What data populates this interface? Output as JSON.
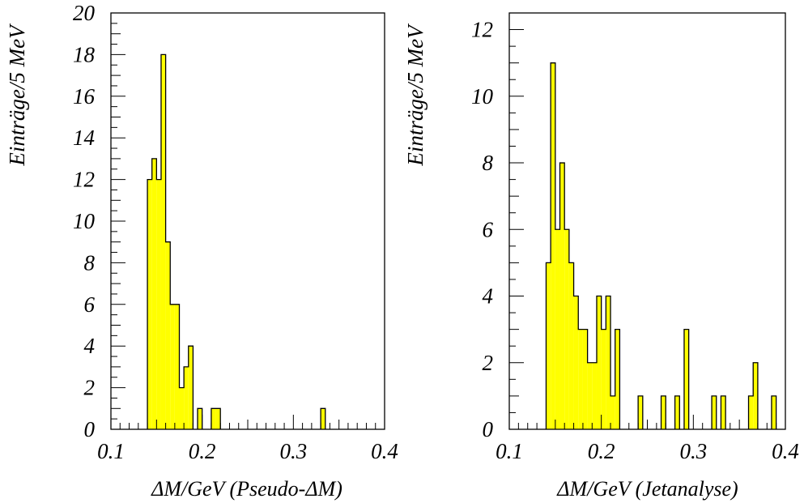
{
  "colors": {
    "fill": "#ffff00",
    "stroke": "#000000",
    "background": "#ffffff"
  },
  "chart_data": [
    {
      "type": "bar",
      "histogram": true,
      "xlabel": "ΔM/GeV (Pseudo-ΔM)",
      "ylabel": "Einträge/5 MeV",
      "xlim": [
        0.1,
        0.4
      ],
      "ylim": [
        0,
        20
      ],
      "xticks": [
        "0.1",
        "0.2",
        "0.3",
        "0.4"
      ],
      "yticks": [
        "0",
        "2",
        "4",
        "6",
        "8",
        "10",
        "12",
        "14",
        "16",
        "18",
        "20"
      ],
      "bin_width": 0.005,
      "bins": [
        {
          "x": 0.14,
          "value": 12
        },
        {
          "x": 0.145,
          "value": 13
        },
        {
          "x": 0.15,
          "value": 12
        },
        {
          "x": 0.155,
          "value": 18
        },
        {
          "x": 0.16,
          "value": 9
        },
        {
          "x": 0.165,
          "value": 6
        },
        {
          "x": 0.17,
          "value": 6
        },
        {
          "x": 0.175,
          "value": 2
        },
        {
          "x": 0.18,
          "value": 3
        },
        {
          "x": 0.185,
          "value": 4
        },
        {
          "x": 0.195,
          "value": 1
        },
        {
          "x": 0.21,
          "value": 1
        },
        {
          "x": 0.215,
          "value": 1
        },
        {
          "x": 0.33,
          "value": 1
        }
      ]
    },
    {
      "type": "bar",
      "histogram": true,
      "xlabel": "ΔM/GeV (Jetanalyse)",
      "ylabel": "Einträge/5 MeV",
      "xlim": [
        0.1,
        0.4
      ],
      "ylim": [
        0,
        12.5
      ],
      "xticks": [
        "0.1",
        "0.2",
        "0.3",
        "0.4"
      ],
      "yticks": [
        "0",
        "2",
        "4",
        "6",
        "8",
        "10",
        "12"
      ],
      "bin_width": 0.005,
      "bins": [
        {
          "x": 0.14,
          "value": 5
        },
        {
          "x": 0.145,
          "value": 11
        },
        {
          "x": 0.15,
          "value": 6
        },
        {
          "x": 0.155,
          "value": 8
        },
        {
          "x": 0.16,
          "value": 6
        },
        {
          "x": 0.165,
          "value": 5
        },
        {
          "x": 0.17,
          "value": 4
        },
        {
          "x": 0.175,
          "value": 3
        },
        {
          "x": 0.18,
          "value": 3
        },
        {
          "x": 0.185,
          "value": 2
        },
        {
          "x": 0.19,
          "value": 2
        },
        {
          "x": 0.195,
          "value": 4
        },
        {
          "x": 0.2,
          "value": 3
        },
        {
          "x": 0.205,
          "value": 4
        },
        {
          "x": 0.21,
          "value": 1
        },
        {
          "x": 0.215,
          "value": 3
        },
        {
          "x": 0.24,
          "value": 1
        },
        {
          "x": 0.265,
          "value": 1
        },
        {
          "x": 0.28,
          "value": 1
        },
        {
          "x": 0.29,
          "value": 3
        },
        {
          "x": 0.32,
          "value": 1
        },
        {
          "x": 0.33,
          "value": 1
        },
        {
          "x": 0.36,
          "value": 1
        },
        {
          "x": 0.365,
          "value": 2
        },
        {
          "x": 0.385,
          "value": 1
        }
      ]
    }
  ]
}
